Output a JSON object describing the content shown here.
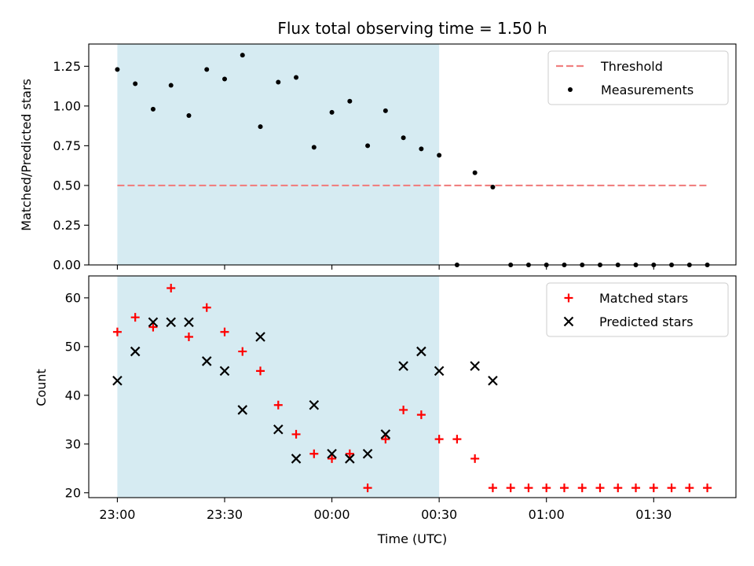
{
  "chart_data": {
    "title": "Flux total observing time = 1.50 h",
    "xlabel": "Time (UTC)",
    "x_ticks": [
      "23:00",
      "23:30",
      "00:00",
      "00:30",
      "01:00",
      "01:30"
    ],
    "x_range": [
      "22:52",
      "01:53"
    ],
    "shaded_interval": [
      "23:00",
      "00:30"
    ],
    "shade_color": "#add8e6",
    "panels": [
      {
        "type": "scatter",
        "ylabel": "Matched/Predicted stars",
        "ylim": [
          0,
          1.39
        ],
        "y_ticks": [
          "0.00",
          "0.25",
          "0.50",
          "0.75",
          "1.00",
          "1.25"
        ],
        "threshold": {
          "name": "Threshold",
          "value": 0.5,
          "x_range": [
            "23:00",
            "01:45"
          ],
          "color": "#f08080"
        },
        "series": [
          {
            "name": "Measurements",
            "marker": "dot",
            "color": "#000000",
            "points": [
              [
                "23:00",
                1.23
              ],
              [
                "23:05",
                1.14
              ],
              [
                "23:10",
                0.98
              ],
              [
                "23:15",
                1.13
              ],
              [
                "23:20",
                0.94
              ],
              [
                "23:25",
                1.23
              ],
              [
                "23:30",
                1.17
              ],
              [
                "23:35",
                1.32
              ],
              [
                "23:40",
                0.87
              ],
              [
                "23:45",
                1.15
              ],
              [
                "23:50",
                1.18
              ],
              [
                "23:55",
                0.74
              ],
              [
                "00:00",
                0.96
              ],
              [
                "00:05",
                1.03
              ],
              [
                "00:10",
                0.75
              ],
              [
                "00:15",
                0.97
              ],
              [
                "00:20",
                0.8
              ],
              [
                "00:25",
                0.73
              ],
              [
                "00:30",
                0.69
              ],
              [
                "00:35",
                0.0
              ],
              [
                "00:40",
                0.58
              ],
              [
                "00:45",
                0.49
              ],
              [
                "00:50",
                0.0
              ],
              [
                "00:55",
                0.0
              ],
              [
                "01:00",
                0.0
              ],
              [
                "01:05",
                0.0
              ],
              [
                "01:10",
                0.0
              ],
              [
                "01:15",
                0.0
              ],
              [
                "01:20",
                0.0
              ],
              [
                "01:25",
                0.0
              ],
              [
                "01:30",
                0.0
              ],
              [
                "01:35",
                0.0
              ],
              [
                "01:40",
                0.0
              ],
              [
                "01:45",
                0.0
              ]
            ]
          }
        ],
        "legend": {
          "placement": "top-right",
          "entries": [
            "Threshold",
            "Measurements"
          ]
        }
      },
      {
        "type": "scatter",
        "ylabel": "Count",
        "ylim": [
          19,
          64.5
        ],
        "y_ticks": [
          "20",
          "30",
          "40",
          "50",
          "60"
        ],
        "series": [
          {
            "name": "Matched stars",
            "marker": "plus",
            "color": "#ff0000",
            "points": [
              [
                "23:00",
                53
              ],
              [
                "23:05",
                56
              ],
              [
                "23:10",
                54
              ],
              [
                "23:15",
                62
              ],
              [
                "23:20",
                52
              ],
              [
                "23:25",
                58
              ],
              [
                "23:30",
                53
              ],
              [
                "23:35",
                49
              ],
              [
                "23:40",
                45
              ],
              [
                "23:45",
                38
              ],
              [
                "23:50",
                32
              ],
              [
                "23:55",
                28
              ],
              [
                "00:00",
                27
              ],
              [
                "00:05",
                28
              ],
              [
                "00:10",
                21
              ],
              [
                "00:15",
                31
              ],
              [
                "00:20",
                37
              ],
              [
                "00:25",
                36
              ],
              [
                "00:30",
                31
              ],
              [
                "00:35",
                31
              ],
              [
                "00:40",
                27
              ],
              [
                "00:45",
                21
              ],
              [
                "00:50",
                21
              ],
              [
                "00:55",
                21
              ],
              [
                "01:00",
                21
              ],
              [
                "01:05",
                21
              ],
              [
                "01:10",
                21
              ],
              [
                "01:15",
                21
              ],
              [
                "01:20",
                21
              ],
              [
                "01:25",
                21
              ],
              [
                "01:30",
                21
              ],
              [
                "01:35",
                21
              ],
              [
                "01:40",
                21
              ],
              [
                "01:45",
                21
              ]
            ]
          },
          {
            "name": "Predicted stars",
            "marker": "x",
            "color": "#000000",
            "points": [
              [
                "23:00",
                43
              ],
              [
                "23:05",
                49
              ],
              [
                "23:10",
                55
              ],
              [
                "23:15",
                55
              ],
              [
                "23:20",
                55
              ],
              [
                "23:25",
                47
              ],
              [
                "23:30",
                45
              ],
              [
                "23:35",
                37
              ],
              [
                "23:40",
                52
              ],
              [
                "23:45",
                33
              ],
              [
                "23:50",
                27
              ],
              [
                "23:55",
                38
              ],
              [
                "00:00",
                28
              ],
              [
                "00:05",
                27
              ],
              [
                "00:10",
                28
              ],
              [
                "00:15",
                32
              ],
              [
                "00:20",
                46
              ],
              [
                "00:25",
                49
              ],
              [
                "00:30",
                45
              ],
              [
                "00:40",
                46
              ],
              [
                "00:45",
                43
              ]
            ]
          }
        ],
        "legend": {
          "placement": "top-right",
          "entries": [
            "Matched stars",
            "Predicted stars"
          ]
        }
      }
    ]
  }
}
